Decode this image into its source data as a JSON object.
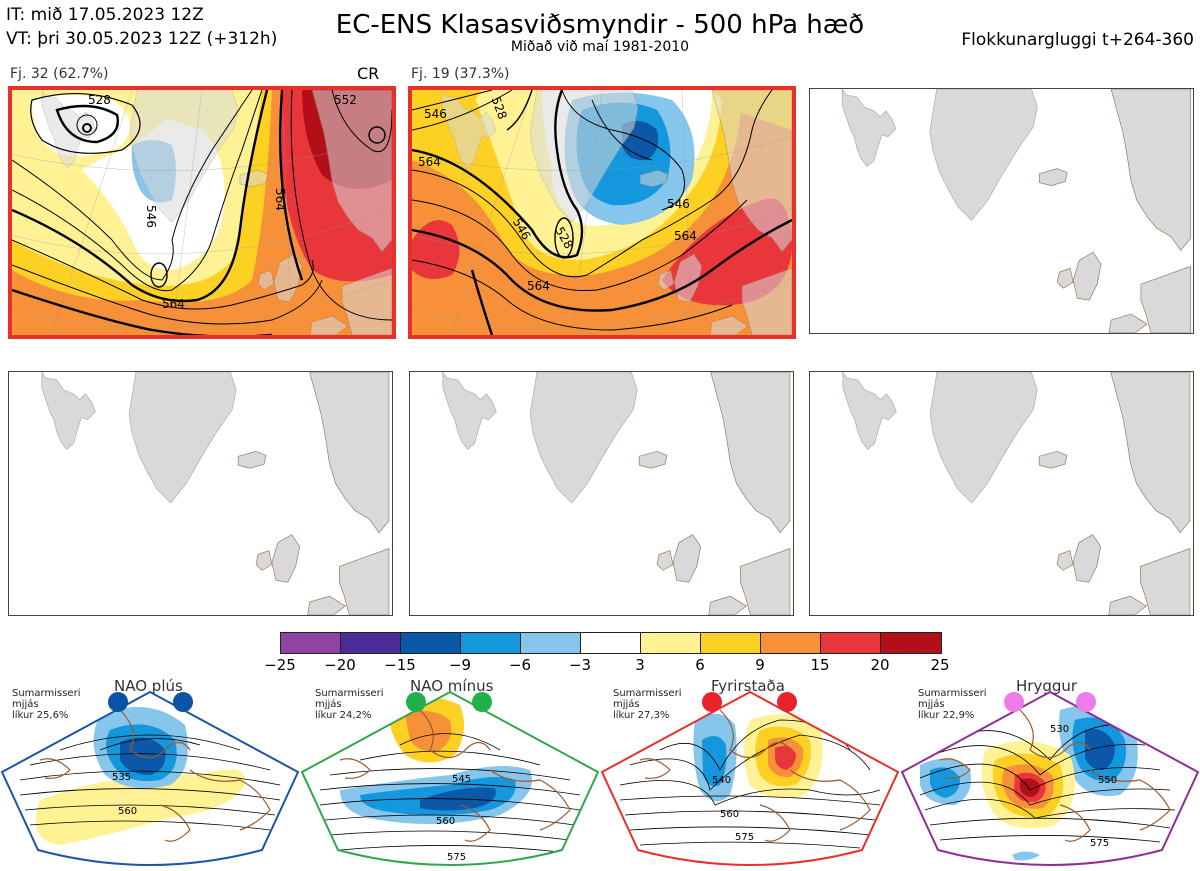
{
  "header": {
    "init_time": "IT: mið 17.05.2023 12Z",
    "valid_time": "VT: þri 30.05.2023 12Z  (+312h)",
    "title": "EC-ENS Klasasviðsmyndir - 500 hPa hæð",
    "subtitle": "Miðað við maí 1981-2010",
    "window": "Flokkunargluggi t+264-360"
  },
  "panels": [
    {
      "label": "Fj. 32 (62.7%)",
      "tag": "CR",
      "contours": [
        "528",
        "546",
        "564",
        "564",
        "552"
      ]
    },
    {
      "label": "Fj. 19 (37.3%)",
      "contours": [
        "546",
        "528",
        "564",
        "546",
        "564",
        "546",
        "528",
        "564"
      ]
    }
  ],
  "colorbar": {
    "colors": [
      "#8e44a0",
      "#4a2d96",
      "#0b58a8",
      "#1497dc",
      "#86c6ec",
      "#ffffff",
      "#fff294",
      "#fdd123",
      "#f6913a",
      "#e9363b",
      "#b30f18"
    ],
    "ticks": [
      "−25",
      "−20",
      "−15",
      "−9",
      "−6",
      "−3",
      "3",
      "6",
      "9",
      "15",
      "20",
      "25"
    ]
  },
  "regimes": [
    {
      "name": "NAO plús",
      "desc": [
        "Sumarmisseri",
        "mjjás",
        "líkur 25,6%"
      ],
      "contours": [
        "535",
        "560"
      ],
      "color": "#1a55a6",
      "dot": "#0b53a5"
    },
    {
      "name": "NAO mínus",
      "desc": [
        "Sumarmisseri",
        "mjjás",
        "líkur 24,2%"
      ],
      "contours": [
        "545",
        "560",
        "575"
      ],
      "color": "#2ea84a",
      "dot": "#22b04d"
    },
    {
      "name": "Fyrirstaða",
      "desc": [
        "Sumarmisseri",
        "mjjás",
        "líkur 27,3%"
      ],
      "contours": [
        "540",
        "560",
        "575"
      ],
      "color": "#e8302a",
      "dot": "#e8242a"
    },
    {
      "name": "Hryggur",
      "desc": [
        "Sumarmisseri",
        "mjjás",
        "líkur 22,9%"
      ],
      "contours": [
        "530",
        "550",
        "575"
      ],
      "color": "#8e2f96",
      "dot": "#ee7be8"
    }
  ]
}
